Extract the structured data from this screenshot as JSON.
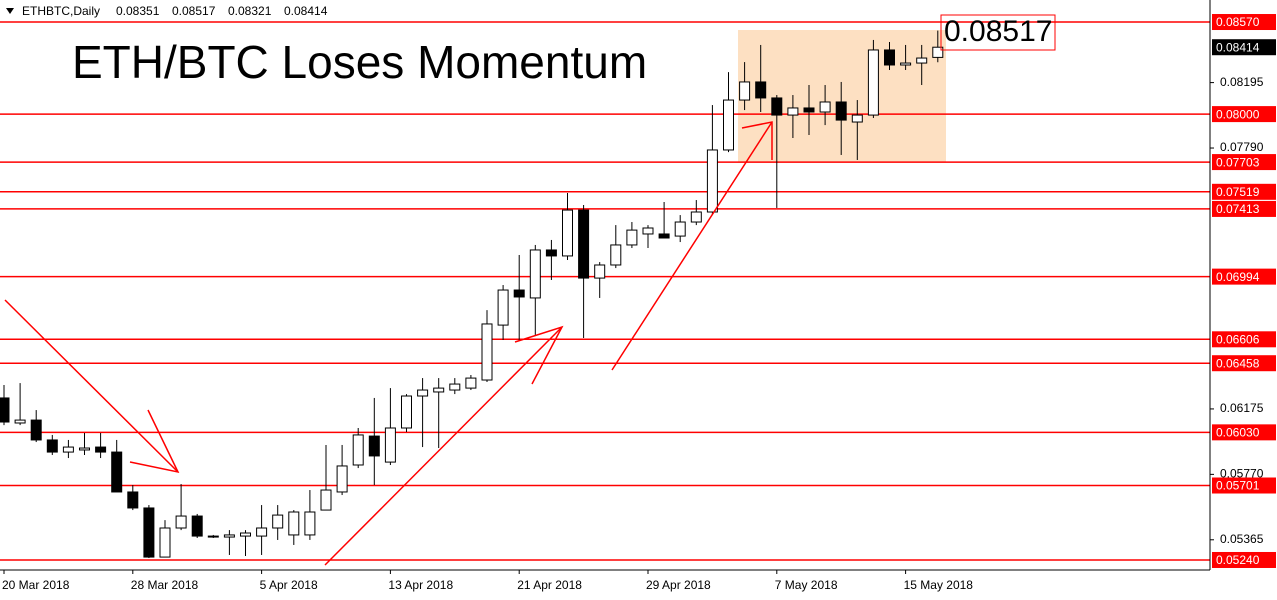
{
  "chart_data": {
    "type": "candlestick",
    "symbol": "ETHBTC,Daily",
    "title": "ETH/BTC Loses Momentum",
    "categories": [
      "20 Mar 2018",
      null,
      null,
      null,
      null,
      null,
      null,
      null,
      "28 Mar 2018",
      null,
      null,
      null,
      null,
      null,
      null,
      null,
      "5 Apr 2018",
      null,
      null,
      null,
      null,
      null,
      null,
      null,
      "13 Apr 2018",
      null,
      null,
      null,
      null,
      null,
      null,
      null,
      "21 Apr 2018",
      null,
      null,
      null,
      null,
      null,
      null,
      null,
      "29 Apr 2018",
      null,
      null,
      null,
      null,
      null,
      null,
      null,
      "7 May 2018",
      null,
      null,
      null,
      null,
      null,
      null,
      null,
      "15 May 2018",
      null,
      null
    ],
    "open": [
      0.06243,
      0.06088,
      0.06106,
      0.05983,
      0.05908,
      0.05921,
      0.05939,
      0.05908,
      0.05661,
      0.05562,
      0.05258,
      0.05438,
      0.05512,
      0.05388,
      0.05382,
      0.05388,
      0.05388,
      0.05438,
      0.05395,
      0.05395,
      0.05549,
      0.05661,
      0.05828,
      0.06007,
      0.05846,
      0.06057,
      0.06255,
      0.0628,
      0.06292,
      0.06304,
      0.06354,
      0.06694,
      0.06911,
      0.06862,
      0.07159,
      0.07122,
      0.07406,
      0.06985,
      0.07066,
      0.0719,
      0.07258,
      0.07258,
      0.07245,
      0.07332,
      0.07394,
      0.07778,
      0.08087,
      0.08199,
      0.081,
      0.07994,
      0.08038,
      0.08013,
      0.08075,
      0.07951,
      0.07994,
      0.08397,
      0.08304,
      0.08316,
      0.08351
    ],
    "high": [
      0.06323,
      0.06335,
      0.06168,
      0.06014,
      0.05983,
      0.06026,
      0.06026,
      0.05983,
      0.05704,
      0.0558,
      0.05487,
      0.0571,
      0.05525,
      0.05395,
      0.05425,
      0.05425,
      0.0558,
      0.0558,
      0.05549,
      0.05673,
      0.05952,
      0.05952,
      0.06057,
      0.06243,
      0.06304,
      0.06267,
      0.06366,
      0.06366,
      0.06366,
      0.06385,
      0.06787,
      0.06942,
      0.07128,
      0.0719,
      0.07221,
      0.07512,
      0.07437,
      0.07084,
      0.07313,
      0.07332,
      0.07313,
      0.07456,
      0.07375,
      0.07468,
      0.08056,
      0.0826,
      0.08322,
      0.08428,
      0.08118,
      0.08118,
      0.0818,
      0.0818,
      0.08199,
      0.08087,
      0.08459,
      0.08446,
      0.08428,
      0.08428,
      0.08517
    ],
    "low": [
      0.06075,
      0.06075,
      0.0597,
      0.0589,
      0.05871,
      0.0589,
      0.05871,
      0.05661,
      0.05549,
      0.05252,
      0.05258,
      0.05425,
      0.05376,
      0.05376,
      0.05271,
      0.05265,
      0.05271,
      0.05364,
      0.05333,
      0.05364,
      0.05549,
      0.05642,
      0.05809,
      0.05704,
      0.05828,
      0.06032,
      0.05939,
      0.05933,
      0.06267,
      0.06292,
      0.06342,
      0.06602,
      0.06602,
      0.06633,
      0.06973,
      0.07097,
      0.06614,
      0.06862,
      0.07047,
      0.07171,
      0.07171,
      0.07245,
      0.07208,
      0.07313,
      0.07375,
      0.07765,
      0.08025,
      0.08013,
      0.07419,
      0.07852,
      0.07871,
      0.07932,
      0.07747,
      0.07716,
      0.07976,
      0.08273,
      0.08273,
      0.0818,
      0.08321
    ],
    "close": [
      0.06094,
      0.06106,
      0.05983,
      0.05908,
      0.05939,
      0.05933,
      0.05908,
      0.05661,
      0.05562,
      0.05258,
      0.05438,
      0.05512,
      0.05388,
      0.05382,
      0.05395,
      0.05407,
      0.05438,
      0.05518,
      0.05537,
      0.05537,
      0.05673,
      0.05822,
      0.06014,
      0.05884,
      0.06057,
      0.06255,
      0.06292,
      0.06304,
      0.06329,
      0.06366,
      0.06701,
      0.06911,
      0.06868,
      0.07159,
      0.07122,
      0.07406,
      0.06985,
      0.07066,
      0.0719,
      0.07282,
      0.07295,
      0.07233,
      0.07332,
      0.07394,
      0.07778,
      0.08087,
      0.08199,
      0.081,
      0.07994,
      0.08038,
      0.08013,
      0.08075,
      0.07963,
      0.07994,
      0.08397,
      0.08304,
      0.08316,
      0.08347,
      0.08414
    ],
    "up_color": "#ffffff",
    "down_color": "#000000",
    "ylim": [
      0.05178,
      0.08632
    ],
    "yticks": [
      0.08195,
      {
        "value": 0.0779,
        "label": "0.07790"
      },
      0.06175,
      {
        "value": 0.0577,
        "label": "0.05770"
      },
      0.05365
    ],
    "levels": [
      {
        "value": 0.0857,
        "label": "0.08570"
      },
      {
        "value": 0.08,
        "label": "0.08000"
      },
      {
        "value": 0.07703,
        "label": "0.07703"
      },
      {
        "value": 0.07519,
        "label": "0.07519"
      },
      {
        "value": 0.07413,
        "label": "0.07413"
      },
      {
        "value": 0.06994,
        "label": "0.06994"
      },
      {
        "value": 0.06606,
        "label": "0.06606"
      },
      {
        "value": 0.06458,
        "label": "0.06458"
      },
      {
        "value": 0.0603,
        "label": "0.06030"
      },
      {
        "value": 0.05701,
        "label": "0.05701"
      },
      {
        "value": 0.0524,
        "label": "0.05240"
      }
    ],
    "level_color": "#ff0000"
  }
}
